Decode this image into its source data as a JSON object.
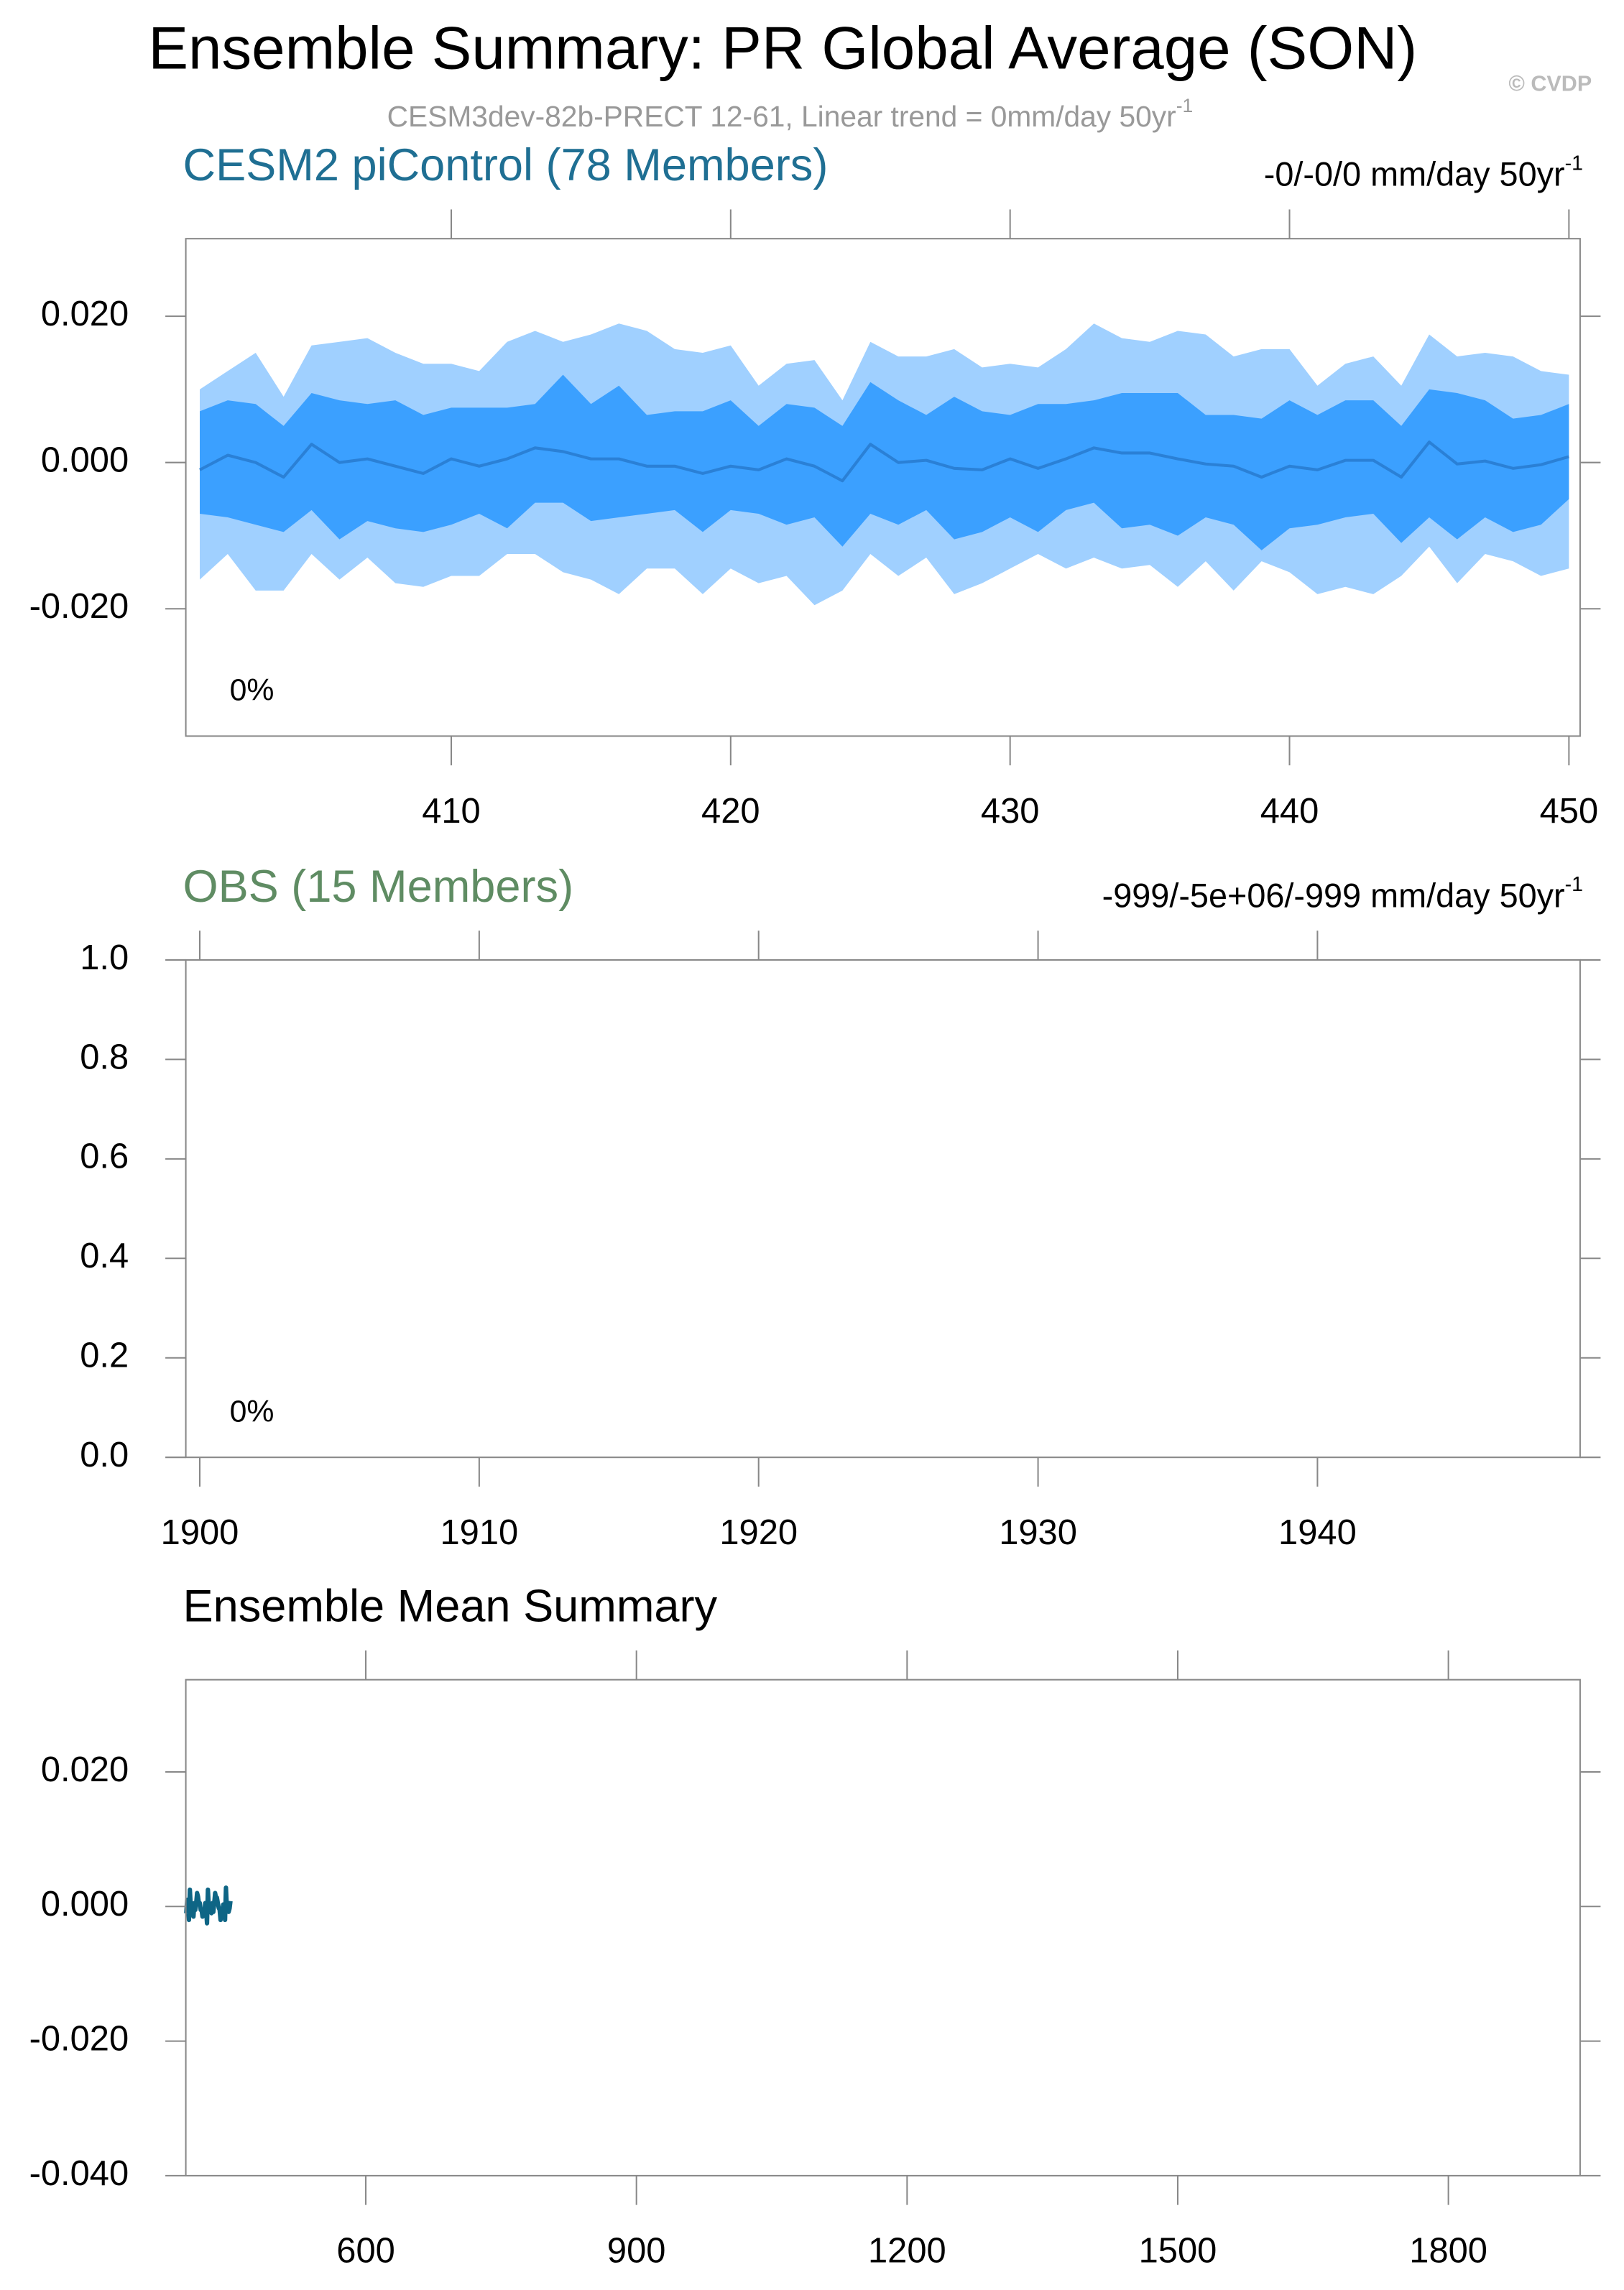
{
  "title": "Ensemble Summary: PR Global Average (SON)",
  "watermark": "© CVDP",
  "subtitle": "CESM3dev-82b-PRECT 12-61, Linear trend = 0mm/day 50yr",
  "subtitle_sup": "-1",
  "chart_data": [
    {
      "type": "band",
      "title": "CESM2 piControl (78 Members)",
      "title_color": "#1f6f93",
      "trend_label": "-0/-0/0 mm/day 50yr",
      "trend_sup": "-1",
      "percent_label": "0%",
      "xlim": [
        400.5,
        450.4
      ],
      "ylim": [
        -0.0374,
        0.0306
      ],
      "xticks": [
        410,
        420,
        430,
        440,
        450
      ],
      "yticks": [
        {
          "value": 0.02,
          "label": "0.020"
        },
        {
          "value": 0,
          "label": "0.000"
        },
        {
          "value": -0.02,
          "label": "-0.020"
        }
      ],
      "x": [
        401,
        402,
        403,
        404,
        405,
        406,
        407,
        408,
        409,
        410,
        411,
        412,
        413,
        414,
        415,
        416,
        417,
        418,
        419,
        420,
        421,
        422,
        423,
        424,
        425,
        426,
        427,
        428,
        429,
        430,
        431,
        432,
        433,
        434,
        435,
        436,
        437,
        438,
        439,
        440,
        441,
        442,
        443,
        444,
        445,
        446,
        447,
        448,
        449,
        450
      ],
      "bands": [
        {
          "color": "#a0d0ff",
          "upper": [
            0.01,
            0.0125,
            0.015,
            0.009,
            0.016,
            0.0165,
            0.017,
            0.015,
            0.0135,
            0.0135,
            0.0125,
            0.0165,
            0.018,
            0.0165,
            0.0175,
            0.019,
            0.018,
            0.0155,
            0.015,
            0.016,
            0.0105,
            0.0135,
            0.014,
            0.0085,
            0.0165,
            0.0145,
            0.0145,
            0.0155,
            0.013,
            0.0135,
            0.013,
            0.0155,
            0.019,
            0.017,
            0.0165,
            0.018,
            0.0175,
            0.0145,
            0.0155,
            0.0155,
            0.0105,
            0.0135,
            0.0145,
            0.0105,
            0.0175,
            0.0145,
            0.015,
            0.0145,
            0.0125,
            0.012
          ],
          "lower": [
            -0.016,
            -0.0125,
            -0.0175,
            -0.0175,
            -0.0125,
            -0.016,
            -0.013,
            -0.0165,
            -0.017,
            -0.0155,
            -0.0155,
            -0.0125,
            -0.0125,
            -0.015,
            -0.016,
            -0.018,
            -0.0145,
            -0.0145,
            -0.018,
            -0.0145,
            -0.0165,
            -0.0155,
            -0.0195,
            -0.0175,
            -0.0125,
            -0.0155,
            -0.013,
            -0.018,
            -0.0165,
            -0.0145,
            -0.0125,
            -0.0145,
            -0.013,
            -0.0145,
            -0.014,
            -0.017,
            -0.0135,
            -0.0175,
            -0.0135,
            -0.015,
            -0.018,
            -0.017,
            -0.018,
            -0.0155,
            -0.0115,
            -0.0165,
            -0.0125,
            -0.0135,
            -0.0155,
            -0.0145
          ]
        },
        {
          "color": "#3ba0ff",
          "upper": [
            0.007,
            0.0085,
            0.008,
            0.005,
            0.0095,
            0.0085,
            0.008,
            0.0085,
            0.0065,
            0.0075,
            0.0075,
            0.0075,
            0.008,
            0.012,
            0.008,
            0.0105,
            0.0065,
            0.007,
            0.007,
            0.0085,
            0.005,
            0.008,
            0.0075,
            0.005,
            0.011,
            0.0085,
            0.0065,
            0.009,
            0.007,
            0.0065,
            0.008,
            0.008,
            0.0085,
            0.0095,
            0.0095,
            0.0095,
            0.0065,
            0.0065,
            0.006,
            0.0085,
            0.0065,
            0.0085,
            0.0085,
            0.005,
            0.01,
            0.0095,
            0.0085,
            0.006,
            0.0065,
            0.008
          ],
          "lower": [
            -0.007,
            -0.0075,
            -0.0085,
            -0.0095,
            -0.0065,
            -0.0105,
            -0.008,
            -0.009,
            -0.0095,
            -0.0085,
            -0.007,
            -0.009,
            -0.0055,
            -0.0055,
            -0.008,
            -0.0075,
            -0.007,
            -0.0065,
            -0.0095,
            -0.0065,
            -0.007,
            -0.0085,
            -0.0075,
            -0.0115,
            -0.007,
            -0.0085,
            -0.0065,
            -0.0105,
            -0.0095,
            -0.0075,
            -0.0095,
            -0.0065,
            -0.0055,
            -0.009,
            -0.0085,
            -0.01,
            -0.0075,
            -0.0085,
            -0.012,
            -0.009,
            -0.0085,
            -0.0075,
            -0.007,
            -0.011,
            -0.0075,
            -0.0105,
            -0.0075,
            -0.0095,
            -0.0085,
            -0.005
          ]
        }
      ],
      "series": [
        {
          "color": "#2a80d6",
          "width": 2,
          "values": [
            -0.001,
            0.001,
            0,
            -0.002,
            0.0025,
            0,
            0.0005,
            -0.0005,
            -0.0015,
            0.0005,
            -0.0005,
            0.0005,
            0.002,
            0.0015,
            0.0005,
            0.0005,
            -0.0005,
            -0.0005,
            -0.0015,
            -0.0005,
            -0.001,
            0.0005,
            -0.0005,
            -0.0025,
            0.0025,
            0,
            0.0003,
            -0.0008,
            -0.001,
            0.0005,
            -0.0008,
            0.0005,
            0.002,
            0.0013,
            0.0013,
            0.0005,
            -0.0002,
            -0.0005,
            -0.002,
            -0.0005,
            -0.001,
            0.0003,
            0.0003,
            -0.002,
            0.0028,
            -0.0002,
            0.0002,
            -0.0008,
            -0.0003,
            0.0008
          ]
        }
      ]
    },
    {
      "type": "line",
      "title": "OBS (15 Members)",
      "title_color": "#5f8c63",
      "trend_label": "-999/-5e+06/-999 mm/day 50yr",
      "trend_sup": "-1",
      "percent_label": "0%",
      "xlim": [
        1899.5,
        1949.4
      ],
      "ylim": [
        0,
        1
      ],
      "xticks": [
        1900,
        1910,
        1920,
        1930,
        1940
      ],
      "yticks": [
        {
          "value": 0,
          "label": "0.0"
        },
        0.2,
        0.4,
        0.6,
        0.8,
        {
          "value": 1,
          "label": "1.0"
        }
      ]
    },
    {
      "type": "line",
      "title": "Ensemble Mean Summary",
      "title_color": "#000000",
      "xlim": [
        400.5,
        1946
      ],
      "ylim": [
        -0.04,
        0.0337
      ],
      "xticks": [
        600,
        900,
        1200,
        1500,
        1800
      ],
      "yticks": [
        {
          "value": 0.02,
          "label": "0.020"
        },
        {
          "value": 0,
          "label": "0.000"
        },
        {
          "value": -0.02,
          "label": "-0.020"
        },
        {
          "value": -0.04,
          "label": "-0.040"
        }
      ],
      "x": [
        401,
        402,
        403,
        404,
        405,
        406,
        407,
        408,
        409,
        410,
        411,
        412,
        413,
        414,
        415,
        416,
        417,
        418,
        419,
        420,
        421,
        422,
        423,
        424,
        425,
        426,
        427,
        428,
        429,
        430,
        431,
        432,
        433,
        434,
        435,
        436,
        437,
        438,
        439,
        440,
        441,
        442,
        443,
        444,
        445,
        446,
        447,
        448,
        449,
        450
      ],
      "series": [
        {
          "color": "#0e6585",
          "width": 3,
          "values": [
            -0.001,
            0.001,
            0,
            -0.002,
            0.0025,
            0,
            0.0005,
            -0.0005,
            -0.0015,
            0.0005,
            -0.0005,
            0.0005,
            0.002,
            0.0015,
            0.0005,
            0.0005,
            -0.0005,
            -0.0005,
            -0.0015,
            -0.0005,
            -0.001,
            0.0005,
            -0.0005,
            -0.0025,
            0.0025,
            0,
            0.0003,
            -0.0008,
            -0.001,
            0.0005,
            -0.0008,
            0.0005,
            0.002,
            0.0013,
            0.0013,
            0.0005,
            -0.0002,
            -0.0005,
            -0.002,
            -0.0005,
            -0.001,
            0.0003,
            0.0003,
            -0.002,
            0.0028,
            -0.0002,
            0.0002,
            -0.0008,
            -0.0003,
            0.0008
          ]
        }
      ]
    }
  ]
}
